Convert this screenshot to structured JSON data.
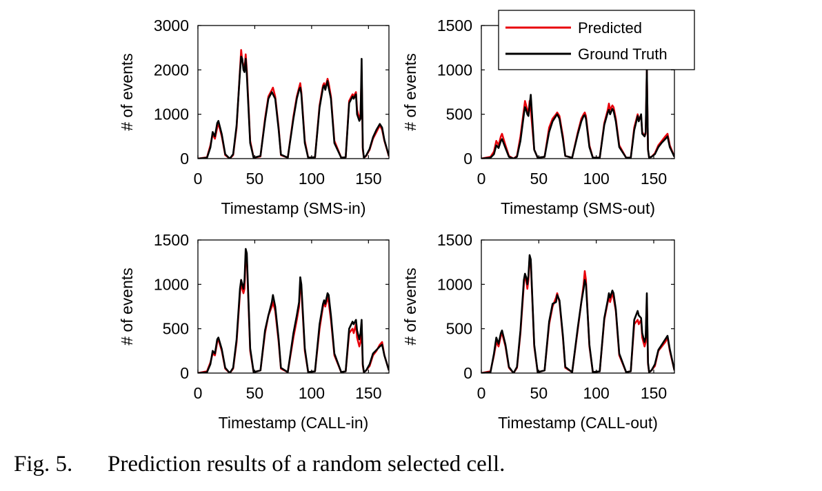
{
  "caption": {
    "label": "Fig. 5.",
    "text": "Prediction results of a random selected cell."
  },
  "legend": {
    "entries": [
      "Predicted",
      "Ground Truth"
    ]
  },
  "colors": {
    "predicted": "#e8000b",
    "ground_truth": "#000000"
  },
  "chart_data": [
    {
      "type": "line",
      "xlabel": "Timestamp (SMS-in)",
      "ylabel": "# of events",
      "xlim": [
        0,
        168
      ],
      "ylim": [
        0,
        3000
      ],
      "xticks": [
        0,
        50,
        100,
        150
      ],
      "yticks": [
        0,
        1000,
        2000,
        3000
      ],
      "grid": false,
      "x": [
        0,
        8,
        11,
        13,
        15,
        17,
        18,
        21,
        24,
        28,
        31,
        34,
        37,
        38,
        39,
        40,
        41,
        42,
        43,
        46,
        49,
        55,
        59,
        62,
        65,
        66,
        68,
        71,
        73,
        79,
        84,
        87,
        89,
        90,
        91,
        94,
        97,
        103,
        107,
        110,
        111,
        112,
        114,
        115,
        117,
        120,
        126,
        130,
        133,
        136,
        137,
        139,
        140,
        142,
        143,
        144,
        145,
        146,
        148,
        151,
        154,
        157,
        160,
        162,
        164,
        168
      ],
      "series": [
        {
          "name": "Predicted",
          "values": [
            0,
            30,
            300,
            550,
            450,
            700,
            800,
            500,
            80,
            0,
            80,
            700,
            2000,
            2450,
            2200,
            2100,
            2050,
            2350,
            2000,
            400,
            20,
            50,
            900,
            1400,
            1550,
            1600,
            1400,
            700,
            80,
            20,
            950,
            1400,
            1600,
            1700,
            1500,
            400,
            20,
            30,
            1200,
            1650,
            1700,
            1600,
            1800,
            1700,
            1400,
            400,
            20,
            30,
            1300,
            1450,
            1400,
            1500,
            1100,
            900,
            1000,
            1950,
            200,
            20,
            60,
            200,
            450,
            600,
            750,
            650,
            400,
            50
          ]
        },
        {
          "name": "Ground Truth",
          "values": [
            0,
            20,
            250,
            600,
            500,
            800,
            850,
            550,
            100,
            0,
            100,
            750,
            1950,
            2300,
            2250,
            2000,
            1950,
            2250,
            1900,
            350,
            20,
            60,
            850,
            1350,
            1500,
            1450,
            1350,
            650,
            90,
            20,
            900,
            1350,
            1550,
            1600,
            1450,
            350,
            20,
            30,
            1150,
            1600,
            1650,
            1550,
            1750,
            1600,
            1350,
            350,
            20,
            30,
            1250,
            1400,
            1350,
            1450,
            1000,
            850,
            900,
            2250,
            250,
            20,
            70,
            220,
            480,
            650,
            780,
            700,
            420,
            60
          ]
        }
      ]
    },
    {
      "type": "line",
      "xlabel": "Timestamp (SMS-out)",
      "ylabel": "# of events",
      "xlim": [
        0,
        168
      ],
      "ylim": [
        0,
        1500
      ],
      "xticks": [
        0,
        50,
        100,
        150
      ],
      "yticks": [
        0,
        500,
        1000,
        1500
      ],
      "grid": false,
      "x": [
        0,
        8,
        11,
        13,
        15,
        17,
        18,
        21,
        24,
        28,
        31,
        34,
        37,
        38,
        39,
        40,
        41,
        42,
        43,
        46,
        49,
        55,
        59,
        62,
        65,
        66,
        68,
        71,
        73,
        79,
        84,
        87,
        89,
        90,
        91,
        94,
        97,
        103,
        107,
        110,
        111,
        112,
        114,
        115,
        117,
        120,
        126,
        130,
        133,
        136,
        137,
        139,
        140,
        142,
        143,
        144,
        145,
        146,
        148,
        151,
        154,
        157,
        160,
        162,
        164,
        168
      ],
      "series": [
        {
          "name": "Predicted",
          "values": [
            0,
            20,
            80,
            200,
            150,
            250,
            280,
            150,
            30,
            0,
            30,
            250,
            550,
            650,
            600,
            550,
            500,
            650,
            550,
            100,
            10,
            20,
            350,
            450,
            500,
            520,
            480,
            250,
            30,
            10,
            300,
            450,
            500,
            520,
            480,
            150,
            10,
            10,
            400,
            550,
            620,
            550,
            600,
            580,
            450,
            150,
            10,
            10,
            350,
            500,
            450,
            480,
            300,
            250,
            280,
            1000,
            100,
            10,
            20,
            60,
            150,
            200,
            250,
            280,
            150,
            20
          ]
        },
        {
          "name": "Ground Truth",
          "values": [
            0,
            10,
            50,
            150,
            120,
            200,
            220,
            120,
            20,
            0,
            20,
            200,
            500,
            580,
            550,
            500,
            480,
            600,
            720,
            100,
            10,
            20,
            300,
            420,
            480,
            500,
            450,
            220,
            30,
            10,
            280,
            420,
            480,
            490,
            450,
            130,
            10,
            10,
            380,
            520,
            550,
            500,
            560,
            540,
            420,
            130,
            10,
            10,
            320,
            480,
            420,
            500,
            280,
            250,
            300,
            1000,
            100,
            10,
            20,
            50,
            130,
            180,
            220,
            250,
            130,
            20
          ]
        }
      ]
    },
    {
      "type": "line",
      "xlabel": "Timestamp (CALL-in)",
      "ylabel": "# of events",
      "xlim": [
        0,
        168
      ],
      "ylim": [
        0,
        1500
      ],
      "xticks": [
        0,
        50,
        100,
        150
      ],
      "yticks": [
        0,
        500,
        1000,
        1500
      ],
      "grid": false,
      "x": [
        0,
        8,
        11,
        13,
        15,
        17,
        18,
        21,
        24,
        28,
        31,
        34,
        37,
        38,
        39,
        40,
        41,
        42,
        43,
        46,
        49,
        55,
        59,
        62,
        65,
        66,
        68,
        71,
        73,
        79,
        84,
        87,
        89,
        90,
        91,
        94,
        97,
        103,
        107,
        110,
        111,
        112,
        114,
        115,
        117,
        120,
        126,
        130,
        133,
        136,
        137,
        139,
        140,
        142,
        143,
        144,
        145,
        146,
        148,
        151,
        154,
        157,
        160,
        162,
        164,
        168
      ],
      "series": [
        {
          "name": "Predicted",
          "values": [
            0,
            20,
            120,
            220,
            200,
            350,
            380,
            250,
            50,
            0,
            50,
            350,
            900,
            1050,
            950,
            900,
            950,
            1350,
            1300,
            250,
            10,
            30,
            450,
            650,
            750,
            800,
            700,
            350,
            50,
            10,
            400,
            600,
            750,
            1000,
            950,
            250,
            10,
            20,
            500,
            750,
            800,
            750,
            850,
            800,
            600,
            200,
            10,
            20,
            450,
            500,
            450,
            550,
            400,
            300,
            350,
            550,
            80,
            10,
            30,
            80,
            200,
            250,
            320,
            350,
            200,
            30
          ]
        },
        {
          "name": "Ground Truth",
          "values": [
            0,
            10,
            100,
            250,
            220,
            380,
            400,
            270,
            60,
            0,
            60,
            380,
            950,
            1050,
            1000,
            950,
            1050,
            1400,
            1350,
            280,
            10,
            30,
            480,
            650,
            800,
            880,
            750,
            380,
            60,
            10,
            450,
            650,
            800,
            1080,
            1000,
            280,
            10,
            20,
            550,
            780,
            820,
            780,
            900,
            880,
            650,
            220,
            10,
            20,
            500,
            580,
            550,
            600,
            480,
            380,
            450,
            600,
            100,
            10,
            30,
            100,
            220,
            260,
            300,
            320,
            200,
            30
          ]
        }
      ]
    },
    {
      "type": "line",
      "xlabel": "Timestamp (CALL-out)",
      "ylabel": "# of events",
      "xlim": [
        0,
        168
      ],
      "ylim": [
        0,
        1500
      ],
      "xticks": [
        0,
        50,
        100,
        150
      ],
      "yticks": [
        0,
        500,
        1000,
        1500
      ],
      "grid": false,
      "x": [
        0,
        8,
        11,
        13,
        15,
        17,
        18,
        21,
        24,
        28,
        31,
        34,
        37,
        38,
        39,
        40,
        41,
        42,
        43,
        46,
        49,
        55,
        59,
        62,
        65,
        66,
        68,
        71,
        73,
        79,
        84,
        87,
        89,
        90,
        91,
        94,
        97,
        103,
        107,
        110,
        111,
        112,
        114,
        115,
        117,
        120,
        126,
        130,
        133,
        136,
        137,
        139,
        140,
        142,
        143,
        144,
        145,
        146,
        148,
        151,
        154,
        157,
        160,
        162,
        164,
        168
      ],
      "series": [
        {
          "name": "Predicted",
          "values": [
            0,
            20,
            200,
            350,
            300,
            420,
            450,
            300,
            60,
            0,
            60,
            450,
            1000,
            1100,
            1050,
            950,
            1050,
            1300,
            1250,
            300,
            10,
            30,
            550,
            750,
            850,
            900,
            800,
            400,
            60,
            10,
            500,
            800,
            1000,
            1150,
            1050,
            300,
            10,
            20,
            600,
            800,
            850,
            800,
            900,
            850,
            700,
            200,
            10,
            20,
            550,
            600,
            550,
            600,
            400,
            300,
            350,
            850,
            100,
            10,
            30,
            80,
            250,
            300,
            350,
            400,
            250,
            30
          ]
        },
        {
          "name": "Ground Truth",
          "values": [
            0,
            10,
            220,
            400,
            330,
            450,
            480,
            320,
            70,
            0,
            70,
            480,
            1050,
            1120,
            1080,
            1000,
            1100,
            1330,
            1280,
            320,
            10,
            30,
            580,
            780,
            800,
            880,
            820,
            420,
            70,
            10,
            520,
            800,
            950,
            1050,
            1000,
            320,
            10,
            20,
            620,
            820,
            900,
            850,
            930,
            900,
            720,
            220,
            10,
            20,
            600,
            700,
            650,
            620,
            450,
            350,
            400,
            900,
            120,
            10,
            30,
            100,
            260,
            320,
            380,
            420,
            270,
            30
          ]
        }
      ]
    }
  ]
}
